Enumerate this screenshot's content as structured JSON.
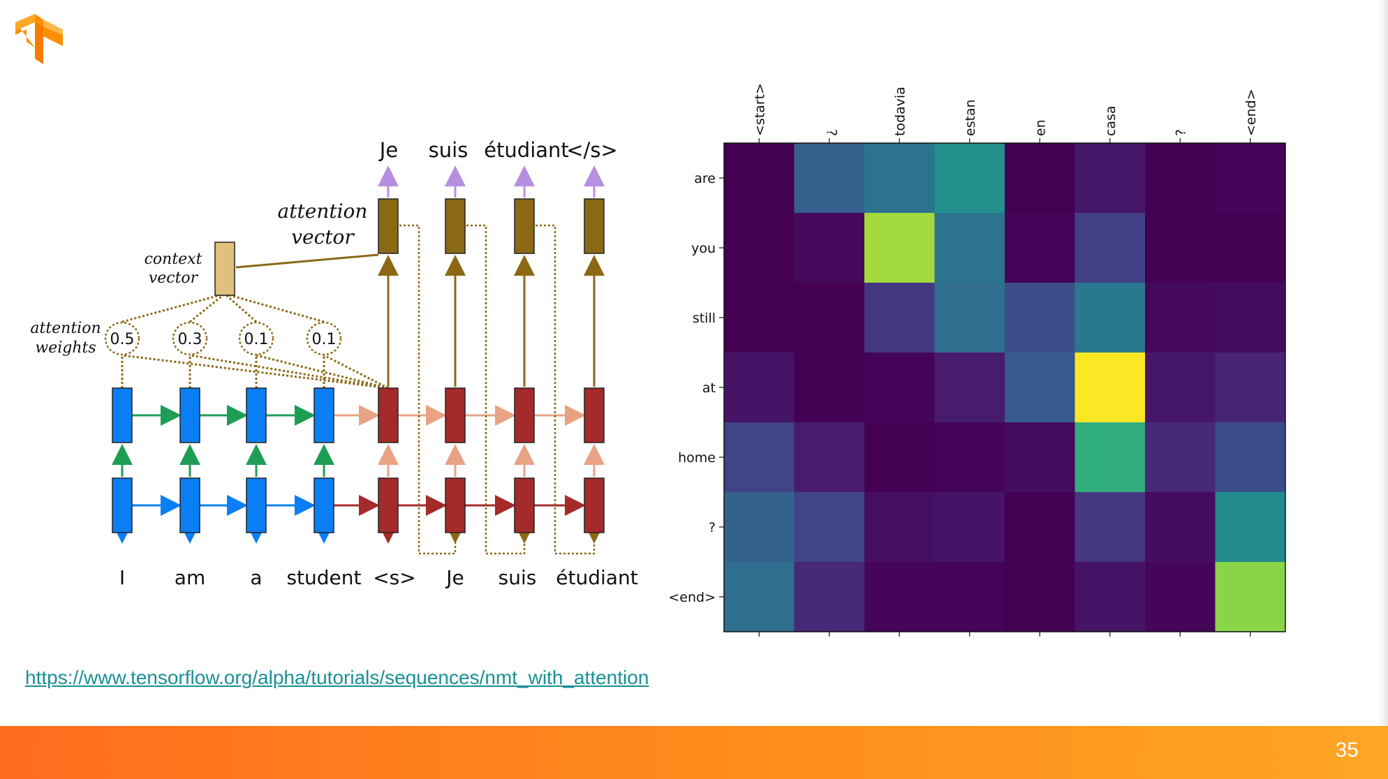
{
  "slide": {
    "page_number": "35",
    "link_text": "https://www.tensorflow.org/alpha/tutorials/sequences/nmt_with_attention",
    "colors": {
      "footer_start": "#ff6d1f",
      "footer_end": "#ffa524",
      "logo_orange": "#ff8f00",
      "link": "#1a8f96"
    },
    "logo_icon": "tensorflow-logo-icon"
  },
  "diagram": {
    "source_words": [
      "I",
      "am",
      "a",
      "student"
    ],
    "target_inputs": [
      "<s>",
      "Je",
      "suis",
      "étudiant"
    ],
    "outputs": [
      "Je",
      "suis",
      "étudiant",
      "</s>"
    ],
    "attention_weights": [
      "0.5",
      "0.3",
      "0.1",
      "0.1"
    ],
    "labels": {
      "context_vector_1": "context",
      "context_vector_2": "vector",
      "attention_weights_1": "attention",
      "attention_weights_2": "weights",
      "attention_vector_1": "attention",
      "attention_vector_2": "vector"
    },
    "colors": {
      "encoder": "#0a7ff5",
      "decoder": "#a52a2a",
      "attention_vector": "#8b6914",
      "context": "#dfc07e",
      "output_arrow": "#b68fe0",
      "green_arrow": "#1e9e54",
      "peach_arrow": "#e8a384"
    }
  },
  "chart_data": {
    "type": "heatmap",
    "title": "",
    "xlabel": "",
    "ylabel": "",
    "x_labels": [
      "<start>",
      "¿",
      "todavia",
      "estan",
      "en",
      "casa",
      "?",
      "<end>"
    ],
    "y_labels": [
      "are",
      "you",
      "still",
      "at",
      "home",
      "?",
      "<end>"
    ],
    "colormap": "viridis",
    "values": [
      [
        0.0,
        0.38,
        0.48,
        0.62,
        0.0,
        0.08,
        0.0,
        0.01
      ],
      [
        0.0,
        0.03,
        0.9,
        0.48,
        0.02,
        0.24,
        0.0,
        0.0
      ],
      [
        0.0,
        0.0,
        0.2,
        0.45,
        0.3,
        0.5,
        0.03,
        0.04
      ],
      [
        0.07,
        0.0,
        0.01,
        0.1,
        0.35,
        1.0,
        0.08,
        0.13
      ],
      [
        0.25,
        0.1,
        0.0,
        0.01,
        0.04,
        0.72,
        0.15,
        0.3
      ],
      [
        0.4,
        0.25,
        0.05,
        0.07,
        0.0,
        0.2,
        0.04,
        0.6
      ],
      [
        0.45,
        0.15,
        0.02,
        0.01,
        0.0,
        0.07,
        0.02,
        0.87
      ]
    ],
    "grid": false,
    "ticks_on": [
      "left",
      "top",
      "bottom"
    ]
  }
}
